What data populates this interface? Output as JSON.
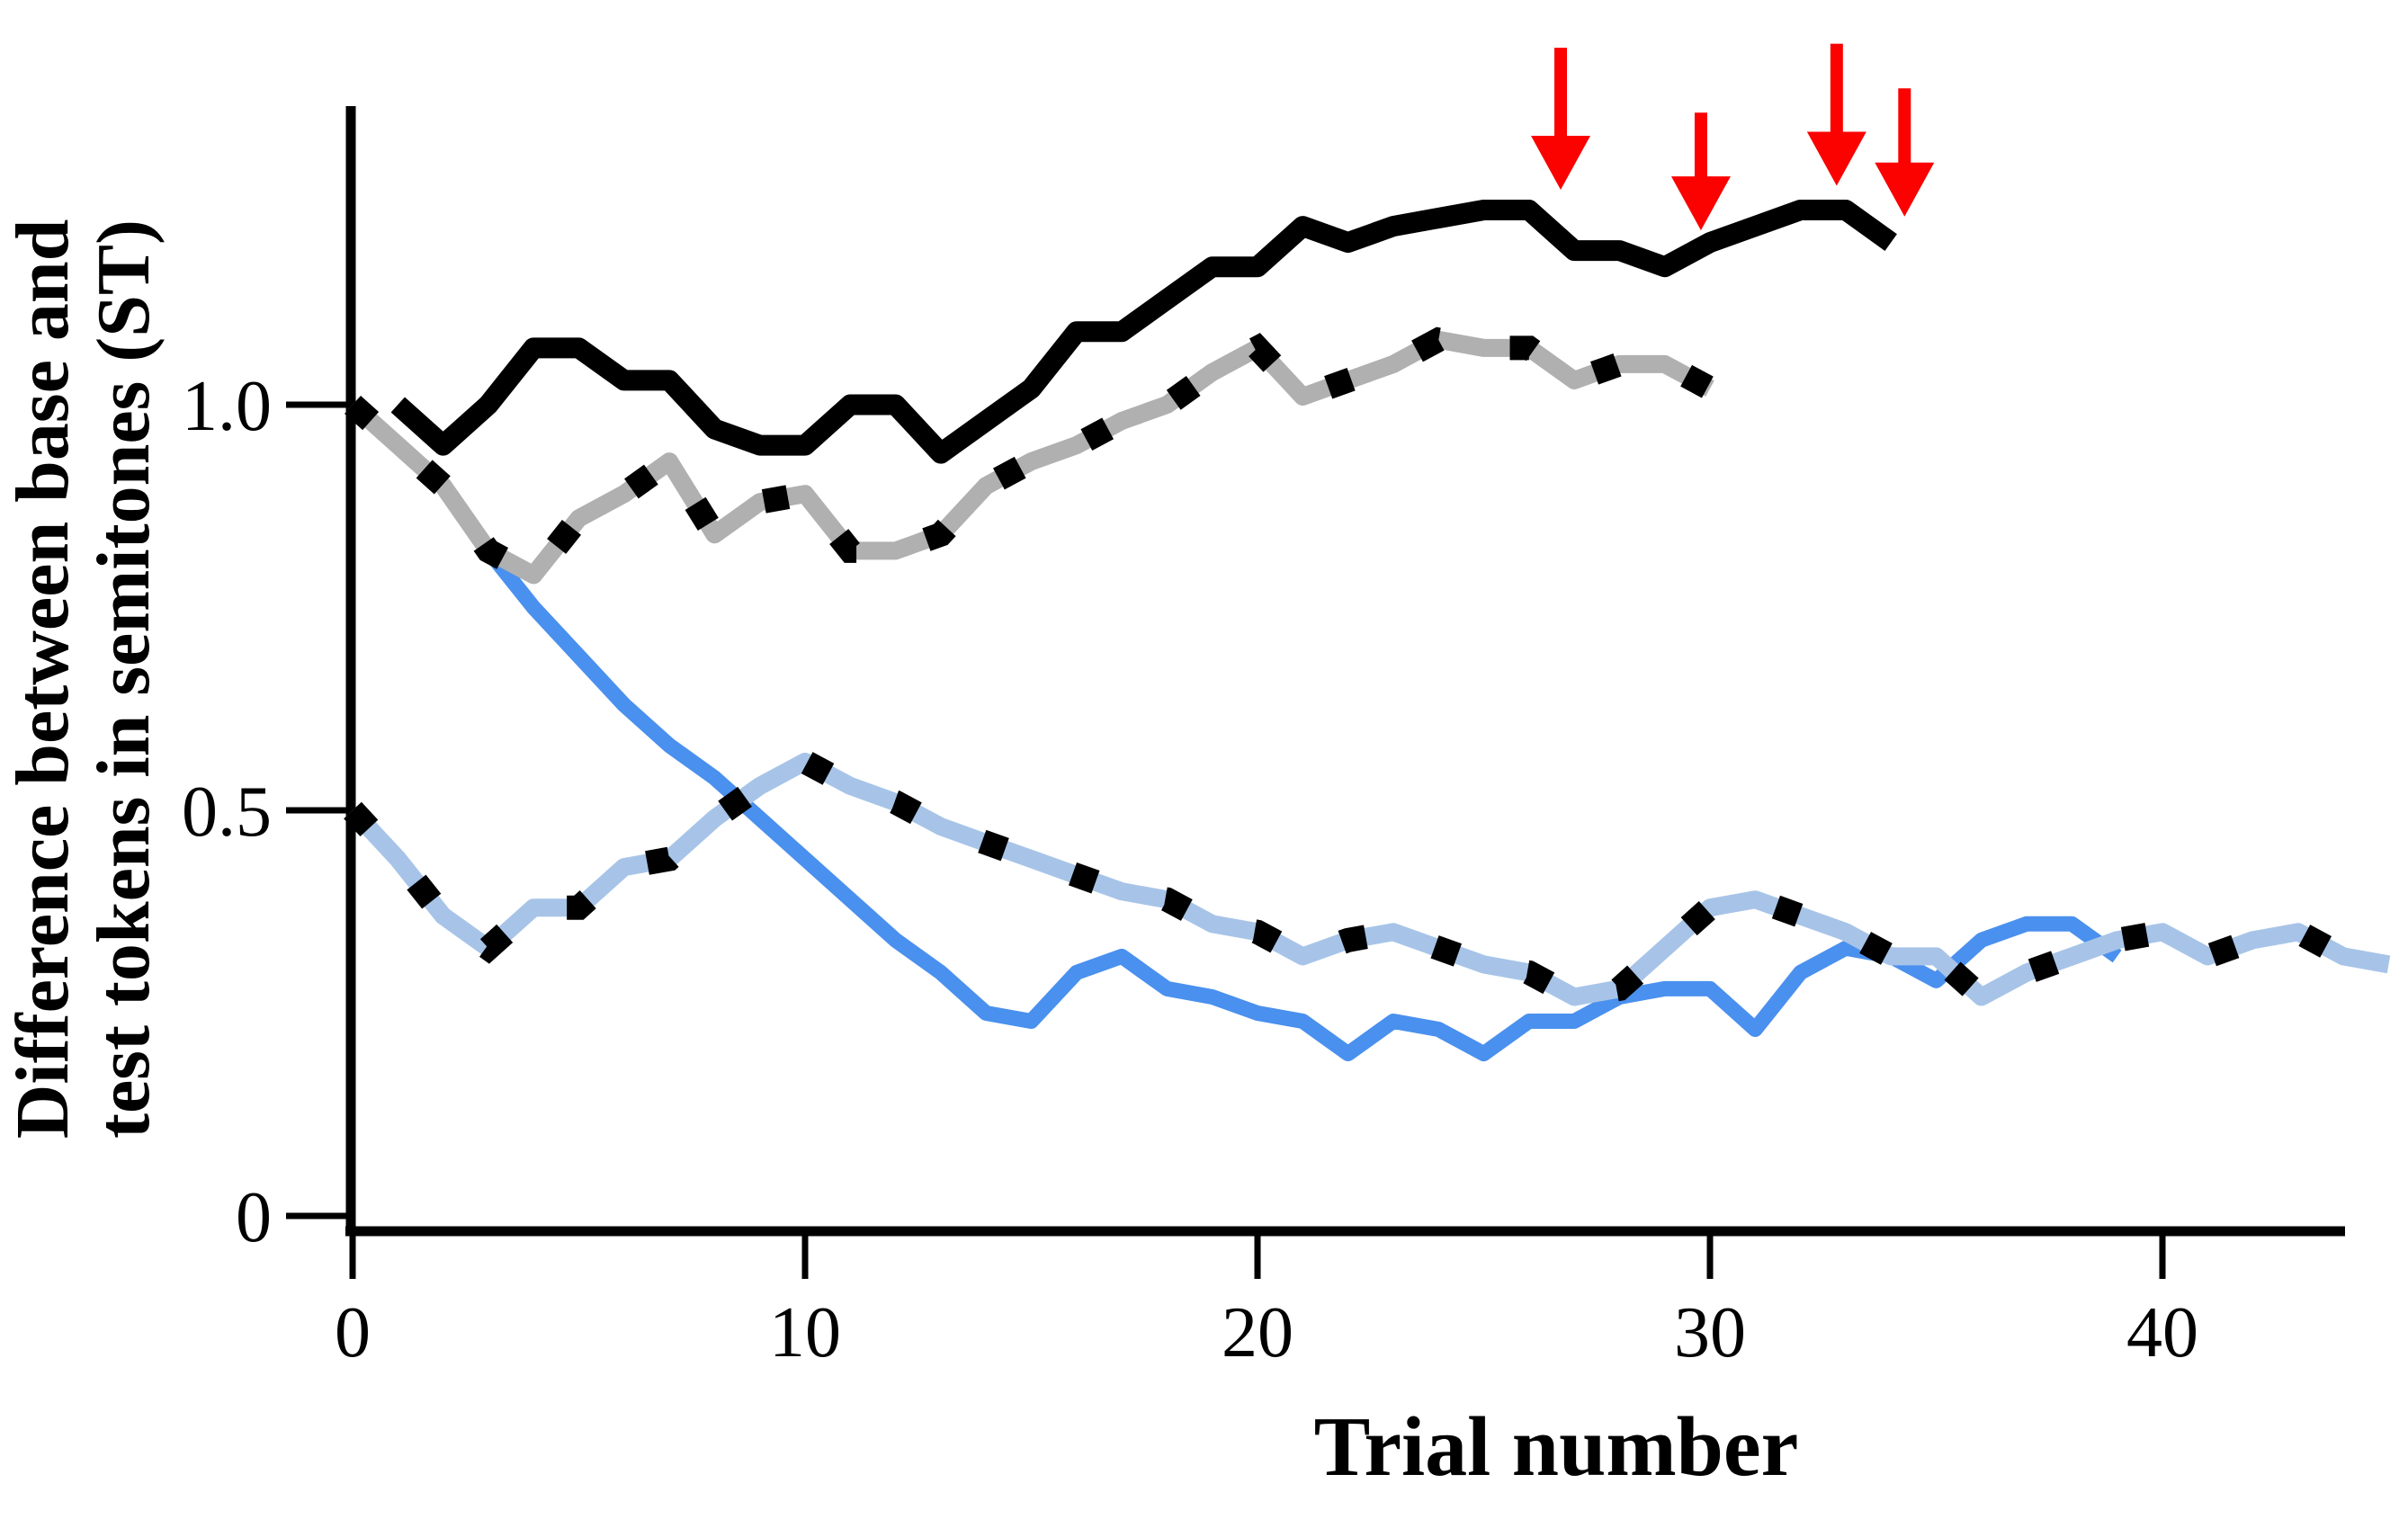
{
  "figure": {
    "background": "#ffffff",
    "y_axis_title_line1": "Difference between base and",
    "y_axis_title_line2": "test tokens in semitones (ST)",
    "x_axis_title": "Trial number"
  },
  "colors": {
    "axis": "#000000",
    "black": "#000000",
    "gray": "#b0b0b0",
    "blue": "#4a90ee",
    "light_blue": "#a7c4e8",
    "red": "#fb0100"
  },
  "chart_data": {
    "type": "line",
    "title": "",
    "xlabel": "Trial number",
    "ylabel": "Difference between base and test tokens in semitones (ST)",
    "xlim": [
      0,
      45
    ],
    "ylim": [
      0,
      1.45
    ],
    "grid": false,
    "legend_position": "none",
    "x_ticks": [
      0,
      10,
      20,
      30,
      40
    ],
    "y_ticks": [
      {
        "value": 1.0,
        "label": "1.0"
      },
      {
        "value": 0.5,
        "label": "0.5"
      },
      {
        "value": 0.0,
        "label": "0"
      }
    ],
    "series": [
      {
        "name": "blue-solid",
        "style": "solid",
        "color": "#4a90ee",
        "width": 17,
        "x": [
          3,
          4,
          5,
          6,
          7,
          8,
          9,
          10,
          11,
          12,
          13,
          14,
          15,
          16,
          17,
          18,
          19,
          20,
          21,
          22,
          23,
          24,
          25,
          26,
          27,
          28,
          29,
          30,
          31,
          32,
          33,
          34,
          35,
          36,
          37,
          38,
          39
        ],
        "y": [
          0.82,
          0.75,
          0.69,
          0.63,
          0.58,
          0.54,
          0.49,
          0.44,
          0.39,
          0.34,
          0.3,
          0.25,
          0.24,
          0.3,
          0.32,
          0.28,
          0.27,
          0.25,
          0.24,
          0.2,
          0.24,
          0.23,
          0.2,
          0.24,
          0.24,
          0.27,
          0.28,
          0.28,
          0.23,
          0.3,
          0.33,
          0.32,
          0.29,
          0.34,
          0.36,
          0.36,
          0.32
        ]
      },
      {
        "name": "lightblue-dashed",
        "style": "dashed-markers",
        "color": "#a7c4e8",
        "width": 20,
        "x": [
          0,
          1,
          2,
          3,
          4,
          5,
          6,
          7,
          8,
          9,
          10,
          11,
          12,
          13,
          14,
          15,
          16,
          17,
          18,
          19,
          20,
          21,
          22,
          23,
          24,
          25,
          26,
          27,
          28,
          29,
          30,
          31,
          32,
          33,
          34,
          35,
          36,
          37,
          38,
          39,
          40,
          41,
          42,
          43,
          44,
          45
        ],
        "y": [
          0.5,
          0.44,
          0.37,
          0.33,
          0.38,
          0.38,
          0.43,
          0.44,
          0.49,
          0.53,
          0.56,
          0.53,
          0.51,
          0.48,
          0.46,
          0.44,
          0.42,
          0.4,
          0.39,
          0.36,
          0.35,
          0.32,
          0.34,
          0.35,
          0.33,
          0.31,
          0.3,
          0.27,
          0.28,
          0.33,
          0.38,
          0.39,
          0.37,
          0.35,
          0.32,
          0.32,
          0.27,
          0.3,
          0.32,
          0.34,
          0.35,
          0.32,
          0.34,
          0.35,
          0.32,
          0.31
        ]
      },
      {
        "name": "gray-dashed",
        "style": "dashed-markers",
        "color": "#b0b0b0",
        "width": 20,
        "x": [
          0,
          1,
          2,
          3,
          4,
          5,
          6,
          7,
          8,
          9,
          10,
          11,
          12,
          13,
          14,
          15,
          16,
          17,
          18,
          19,
          20,
          21,
          22,
          23,
          24,
          25,
          26,
          27,
          28,
          29,
          30
        ],
        "y": [
          1.0,
          0.95,
          0.9,
          0.82,
          0.79,
          0.86,
          0.89,
          0.93,
          0.84,
          0.88,
          0.89,
          0.82,
          0.82,
          0.84,
          0.9,
          0.93,
          0.95,
          0.98,
          1.0,
          1.04,
          1.07,
          1.01,
          1.03,
          1.05,
          1.08,
          1.07,
          1.07,
          1.03,
          1.05,
          1.05,
          1.02
        ]
      },
      {
        "name": "black-solid",
        "style": "solid",
        "color": "#000000",
        "width": 23,
        "x": [
          1,
          2,
          3,
          4,
          5,
          6,
          7,
          8,
          9,
          10,
          11,
          12,
          13,
          14,
          15,
          16,
          17,
          18,
          19,
          20,
          21,
          22,
          23,
          24,
          25,
          26,
          27,
          28,
          29,
          30,
          31,
          32,
          33,
          34
        ],
        "y": [
          1.0,
          0.95,
          1.0,
          1.07,
          1.07,
          1.03,
          1.03,
          0.97,
          0.95,
          0.95,
          1.0,
          1.0,
          0.94,
          0.98,
          1.02,
          1.09,
          1.09,
          1.13,
          1.17,
          1.17,
          1.22,
          1.2,
          1.22,
          1.23,
          1.24,
          1.24,
          1.19,
          1.19,
          1.17,
          1.2,
          1.22,
          1.24,
          1.24,
          1.2
        ]
      }
    ],
    "red_arrows": [
      {
        "trial": 26.7,
        "top_st": 1.44,
        "tip_st": 1.265
      },
      {
        "trial": 29.8,
        "top_st": 1.36,
        "tip_st": 1.215
      },
      {
        "trial": 32.8,
        "top_st": 1.445,
        "tip_st": 1.27
      },
      {
        "trial": 34.3,
        "top_st": 1.39,
        "tip_st": 1.232
      }
    ]
  }
}
